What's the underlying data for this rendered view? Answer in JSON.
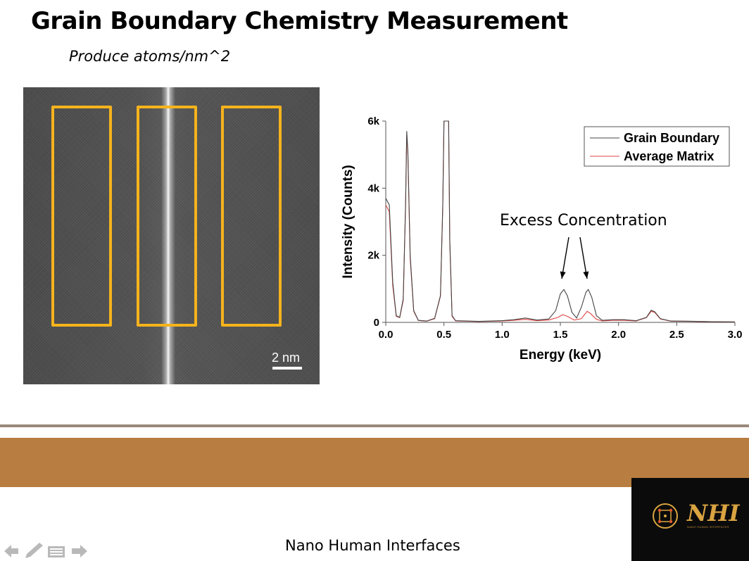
{
  "slide": {
    "title": "Grain Boundary Chemistry Measurement",
    "subtitle": "Produce atoms/nm^2"
  },
  "micrograph": {
    "scale_label": "2 nm",
    "highlight_color": "#f5b31c"
  },
  "annotation": {
    "text": "Excess Concentration"
  },
  "footer": {
    "text": "Nano Human Interfaces",
    "logo_text": "NHI",
    "logo_subtext": "NANO HUMAN INTERFACES",
    "band_color": "#b87d40"
  },
  "nav_icons": [
    "back-arrow-icon",
    "pencil-icon",
    "menu-icon",
    "forward-arrow-icon"
  ],
  "chart_data": {
    "type": "line",
    "title": "",
    "xlabel": "Energy (keV)",
    "ylabel": "Intensity (Counts)",
    "xlim": [
      0.0,
      3.0
    ],
    "ylim": [
      0,
      6000
    ],
    "x_ticks": [
      "0.0",
      "0.5",
      "1.0",
      "1.5",
      "2.0",
      "2.5",
      "3.0"
    ],
    "y_ticks": [
      "0",
      "2k",
      "4k",
      "6k"
    ],
    "legend_position": "top-right",
    "series": [
      {
        "name": "Grain Boundary",
        "color": "#444444",
        "points": [
          [
            0.0,
            3700
          ],
          [
            0.03,
            3500
          ],
          [
            0.06,
            1200
          ],
          [
            0.09,
            200
          ],
          [
            0.12,
            150
          ],
          [
            0.15,
            700
          ],
          [
            0.17,
            3500
          ],
          [
            0.18,
            5700
          ],
          [
            0.19,
            5100
          ],
          [
            0.21,
            2000
          ],
          [
            0.24,
            350
          ],
          [
            0.28,
            60
          ],
          [
            0.35,
            40
          ],
          [
            0.42,
            120
          ],
          [
            0.47,
            800
          ],
          [
            0.49,
            3500
          ],
          [
            0.5,
            6000
          ],
          [
            0.54,
            6000
          ],
          [
            0.55,
            2500
          ],
          [
            0.57,
            200
          ],
          [
            0.6,
            50
          ],
          [
            0.8,
            30
          ],
          [
            1.0,
            50
          ],
          [
            1.1,
            80
          ],
          [
            1.2,
            130
          ],
          [
            1.3,
            70
          ],
          [
            1.4,
            100
          ],
          [
            1.46,
            350
          ],
          [
            1.5,
            850
          ],
          [
            1.53,
            980
          ],
          [
            1.56,
            800
          ],
          [
            1.6,
            300
          ],
          [
            1.64,
            130
          ],
          [
            1.68,
            450
          ],
          [
            1.72,
            900
          ],
          [
            1.74,
            980
          ],
          [
            1.77,
            750
          ],
          [
            1.81,
            200
          ],
          [
            1.86,
            60
          ],
          [
            1.95,
            80
          ],
          [
            2.05,
            80
          ],
          [
            2.15,
            50
          ],
          [
            2.24,
            150
          ],
          [
            2.28,
            360
          ],
          [
            2.31,
            320
          ],
          [
            2.36,
            110
          ],
          [
            2.45,
            40
          ],
          [
            2.6,
            35
          ],
          [
            2.8,
            20
          ],
          [
            3.0,
            15
          ]
        ]
      },
      {
        "name": "Average Matrix",
        "color": "#e04545",
        "points": [
          [
            0.0,
            3500
          ],
          [
            0.03,
            3300
          ],
          [
            0.06,
            1100
          ],
          [
            0.09,
            180
          ],
          [
            0.12,
            140
          ],
          [
            0.15,
            650
          ],
          [
            0.17,
            3400
          ],
          [
            0.18,
            5600
          ],
          [
            0.19,
            5000
          ],
          [
            0.21,
            1900
          ],
          [
            0.24,
            330
          ],
          [
            0.28,
            55
          ],
          [
            0.35,
            35
          ],
          [
            0.42,
            110
          ],
          [
            0.47,
            780
          ],
          [
            0.49,
            3500
          ],
          [
            0.5,
            6000
          ],
          [
            0.54,
            6000
          ],
          [
            0.55,
            2400
          ],
          [
            0.57,
            180
          ],
          [
            0.6,
            45
          ],
          [
            0.8,
            25
          ],
          [
            1.0,
            40
          ],
          [
            1.1,
            60
          ],
          [
            1.2,
            90
          ],
          [
            1.3,
            50
          ],
          [
            1.4,
            70
          ],
          [
            1.48,
            150
          ],
          [
            1.52,
            230
          ],
          [
            1.56,
            180
          ],
          [
            1.62,
            70
          ],
          [
            1.68,
            110
          ],
          [
            1.73,
            330
          ],
          [
            1.76,
            260
          ],
          [
            1.81,
            90
          ],
          [
            1.86,
            45
          ],
          [
            1.95,
            60
          ],
          [
            2.05,
            60
          ],
          [
            2.15,
            40
          ],
          [
            2.24,
            140
          ],
          [
            2.28,
            330
          ],
          [
            2.31,
            300
          ],
          [
            2.36,
            100
          ],
          [
            2.45,
            35
          ],
          [
            2.6,
            30
          ],
          [
            2.8,
            18
          ],
          [
            3.0,
            12
          ]
        ]
      }
    ]
  }
}
